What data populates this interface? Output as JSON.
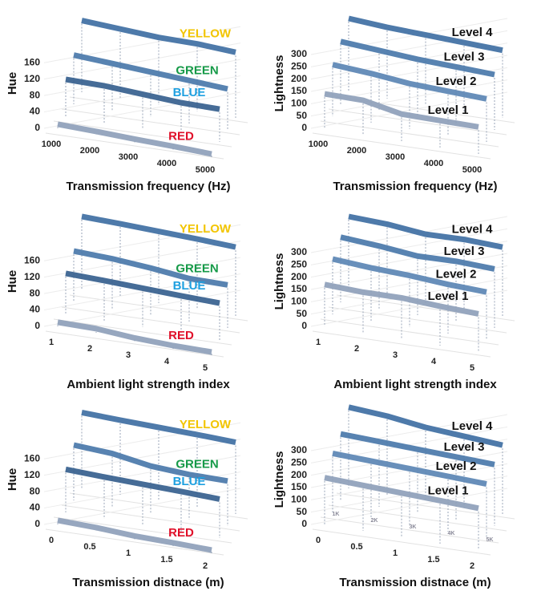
{
  "chart_data": [
    {
      "type": "ribbon",
      "y_label": "Hue",
      "x_label": "Transmission frequency (Hz)",
      "categories": [
        "1000",
        "2000",
        "3000",
        "4000",
        "5000"
      ],
      "ylim": [
        0,
        180
      ],
      "yticks": [
        0,
        40,
        80,
        120,
        160
      ],
      "series": [
        {
          "name": "YELLOW",
          "color": "#3f6fa3",
          "label_color": "#f2c500",
          "values": [
            175,
            170,
            165,
            165,
            160
          ]
        },
        {
          "name": "GREEN",
          "color": "#4a78aa",
          "label_color": "#169a48",
          "values": [
            120,
            115,
            110,
            105,
            100
          ]
        },
        {
          "name": "BLUE",
          "color": "#365f8e",
          "label_color": "#1ea0e0",
          "values": [
            90,
            90,
            85,
            80,
            80
          ]
        },
        {
          "name": "RED",
          "color": "#8e9fba",
          "label_color": "#e0102a",
          "values": [
            10,
            8,
            5,
            3,
            0
          ]
        }
      ]
    },
    {
      "type": "ribbon",
      "y_label": "Lightness",
      "x_label": "Transmission frequency (Hz)",
      "categories": [
        "1000",
        "2000",
        "3000",
        "4000",
        "5000"
      ],
      "ylim": [
        0,
        300
      ],
      "yticks": [
        0,
        50,
        100,
        150,
        200,
        250,
        300
      ],
      "series": [
        {
          "name": "Level 4",
          "color": "#3f6fa3",
          "label_color": "#111111",
          "values": [
            300,
            290,
            285,
            280,
            275
          ]
        },
        {
          "name": "Level 3",
          "color": "#4a78aa",
          "label_color": "#111111",
          "values": [
            255,
            245,
            235,
            230,
            225
          ]
        },
        {
          "name": "Level 2",
          "color": "#5b86b4",
          "label_color": "#111111",
          "values": [
            210,
            200,
            185,
            180,
            175
          ]
        },
        {
          "name": "Level 1",
          "color": "#8e9fba",
          "label_color": "#111111",
          "values": [
            140,
            140,
            110,
            110,
            110
          ]
        }
      ]
    },
    {
      "type": "ribbon",
      "y_label": "Hue",
      "x_label": "Ambient light strength index",
      "categories": [
        "1",
        "2",
        "3",
        "4",
        "5"
      ],
      "ylim": [
        0,
        180
      ],
      "yticks": [
        0,
        40,
        80,
        120,
        160
      ],
      "series": [
        {
          "name": "YELLOW",
          "color": "#3f6fa3",
          "label_color": "#f2c500",
          "values": [
            180,
            178,
            175,
            172,
            168
          ]
        },
        {
          "name": "GREEN",
          "color": "#4a78aa",
          "label_color": "#169a48",
          "values": [
            125,
            122,
            115,
            105,
            105
          ]
        },
        {
          "name": "BLUE",
          "color": "#365f8e",
          "label_color": "#1ea0e0",
          "values": [
            100,
            98,
            95,
            92,
            90
          ]
        },
        {
          "name": "RED",
          "color": "#8e9fba",
          "label_color": "#e0102a",
          "values": [
            10,
            10,
            3,
            0,
            0
          ]
        }
      ]
    },
    {
      "type": "ribbon",
      "y_label": "Lightness",
      "x_label": "Ambient light strength index",
      "categories": [
        "1",
        "2",
        "3",
        "4",
        "5"
      ],
      "ylim": [
        0,
        300
      ],
      "yticks": [
        0,
        50,
        100,
        150,
        200,
        250,
        300
      ],
      "series": [
        {
          "name": "Level 4",
          "color": "#3f6fa3",
          "label_color": "#111111",
          "values": [
            300,
            295,
            280,
            285,
            280
          ]
        },
        {
          "name": "Level 3",
          "color": "#4a78aa",
          "label_color": "#111111",
          "values": [
            265,
            255,
            240,
            245,
            240
          ]
        },
        {
          "name": "Level 2",
          "color": "#5b86b4",
          "label_color": "#111111",
          "values": [
            225,
            215,
            210,
            200,
            195
          ]
        },
        {
          "name": "Level 1",
          "color": "#8e9fba",
          "label_color": "#111111",
          "values": [
            170,
            165,
            168,
            160,
            155
          ]
        }
      ]
    },
    {
      "type": "ribbon",
      "y_label": "Hue",
      "x_label": "Transmission distnace (m)",
      "categories": [
        "0",
        "0.5",
        "1",
        "1.5",
        "2"
      ],
      "ylim": [
        0,
        180
      ],
      "yticks": [
        0,
        40,
        80,
        120,
        160
      ],
      "series": [
        {
          "name": "YELLOW",
          "color": "#3f6fa3",
          "label_color": "#f2c500",
          "values": [
            185,
            182,
            180,
            178,
            175
          ]
        },
        {
          "name": "GREEN",
          "color": "#4a78aa",
          "label_color": "#169a48",
          "values": [
            135,
            130,
            115,
            110,
            110
          ]
        },
        {
          "name": "BLUE",
          "color": "#365f8e",
          "label_color": "#1ea0e0",
          "values": [
            105,
            102,
            100,
            98,
            95
          ]
        },
        {
          "name": "RED",
          "color": "#8e9fba",
          "label_color": "#e0102a",
          "values": [
            10,
            8,
            3,
            2,
            0
          ]
        }
      ]
    },
    {
      "type": "ribbon",
      "y_label": "Lightness",
      "x_label": "Transmission distnace (m)",
      "categories": [
        "0",
        "0.5",
        "1",
        "1.5",
        "2"
      ],
      "floor_labels": [
        "1K",
        "2K",
        "3K",
        "4K",
        "5K"
      ],
      "ylim": [
        0,
        300
      ],
      "yticks": [
        0,
        50,
        100,
        150,
        200,
        250,
        300
      ],
      "series": [
        {
          "name": "Level 4",
          "color": "#3f6fa3",
          "label_color": "#111111",
          "values": [
            330,
            320,
            300,
            290,
            280
          ]
        },
        {
          "name": "Level 3",
          "color": "#4a78aa",
          "label_color": "#111111",
          "values": [
            270,
            265,
            260,
            255,
            250
          ]
        },
        {
          "name": "Level 2",
          "color": "#5b86b4",
          "label_color": "#111111",
          "values": [
            240,
            235,
            230,
            225,
            220
          ]
        },
        {
          "name": "Level 1",
          "color": "#8e9fba",
          "label_color": "#111111",
          "values": [
            190,
            185,
            180,
            175,
            170
          ]
        }
      ]
    }
  ]
}
